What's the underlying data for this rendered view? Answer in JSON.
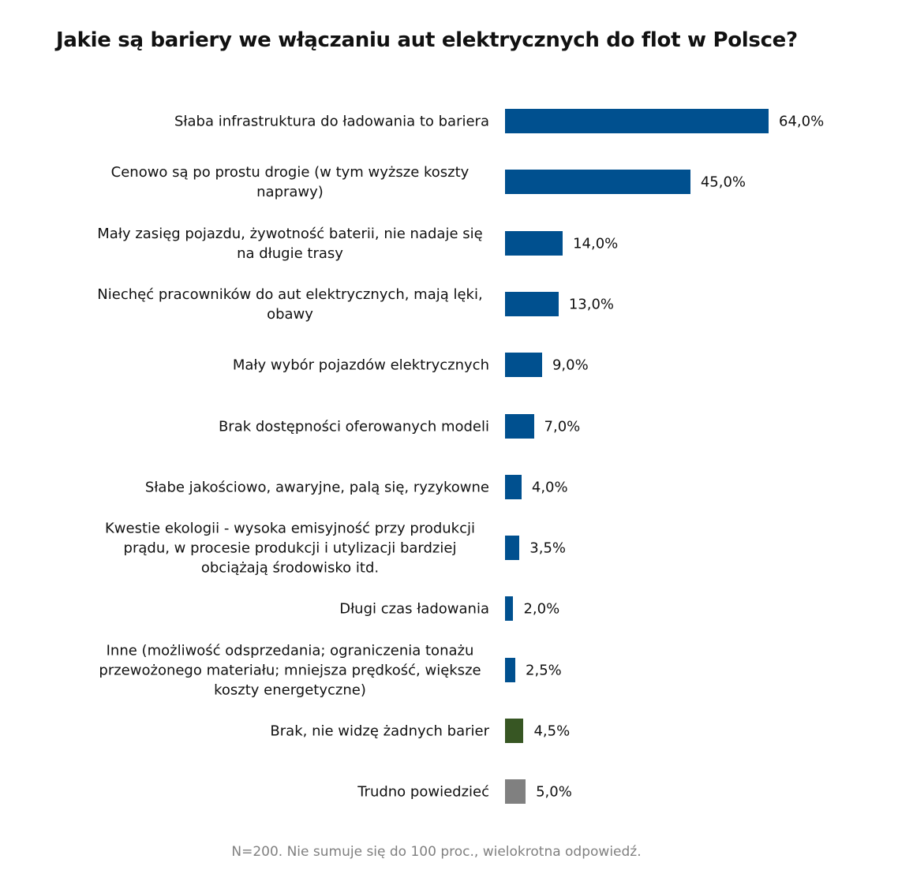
{
  "chart_data": {
    "type": "bar",
    "orientation": "horizontal",
    "title": "Jakie są bariery we włączaniu aut elektrycznych do flot w Polsce?",
    "categories": [
      "Słaba infrastruktura do ładowania to bariera",
      "Cenowo są po prostu drogie (w tym wyższe koszty naprawy)",
      "Mały zasięg pojazdu, żywotność baterii, nie nadaje się na długie trasy",
      "Niechęć pracowników do aut elektrycznych, mają lęki, obawy",
      "Mały wybór pojazdów elektrycznych",
      "Brak dostępności oferowanych modeli",
      "Słabe jakościowo, awaryjne, palą się, ryzykowne",
      "Kwestie ekologii - wysoka emisyjność przy produkcji prądu, w procesie produkcji i utylizacji bardziej obciążają środowisko itd.",
      "Długi czas ładowania",
      "Inne (możliwość odsprzedania; ograniczenia tonażu przewożonego materiału; mniejsza prędkość, większe koszty energetyczne)",
      "Brak, nie widzę żadnych barier",
      "Trudno powiedzieć"
    ],
    "values": [
      64.0,
      45.0,
      14.0,
      13.0,
      9.0,
      7.0,
      4.0,
      3.5,
      2.0,
      2.5,
      4.5,
      5.0
    ],
    "value_labels": [
      "64,0%",
      "45,0%",
      "14,0%",
      "13,0%",
      "9,0%",
      "7,0%",
      "4,0%",
      "3,5%",
      "2,0%",
      "2,5%",
      "4,5%",
      "5,0%"
    ],
    "bar_colors": [
      "#00508F",
      "#00508F",
      "#00508F",
      "#00508F",
      "#00508F",
      "#00508F",
      "#00508F",
      "#00508F",
      "#00508F",
      "#00508F",
      "#375623",
      "#808080"
    ],
    "xlim": [
      0,
      64
    ],
    "grid": false,
    "axes_visible": false,
    "note": "N=200. Nie sumuje się do 100 proc., wielokrotna odpowiedź."
  }
}
